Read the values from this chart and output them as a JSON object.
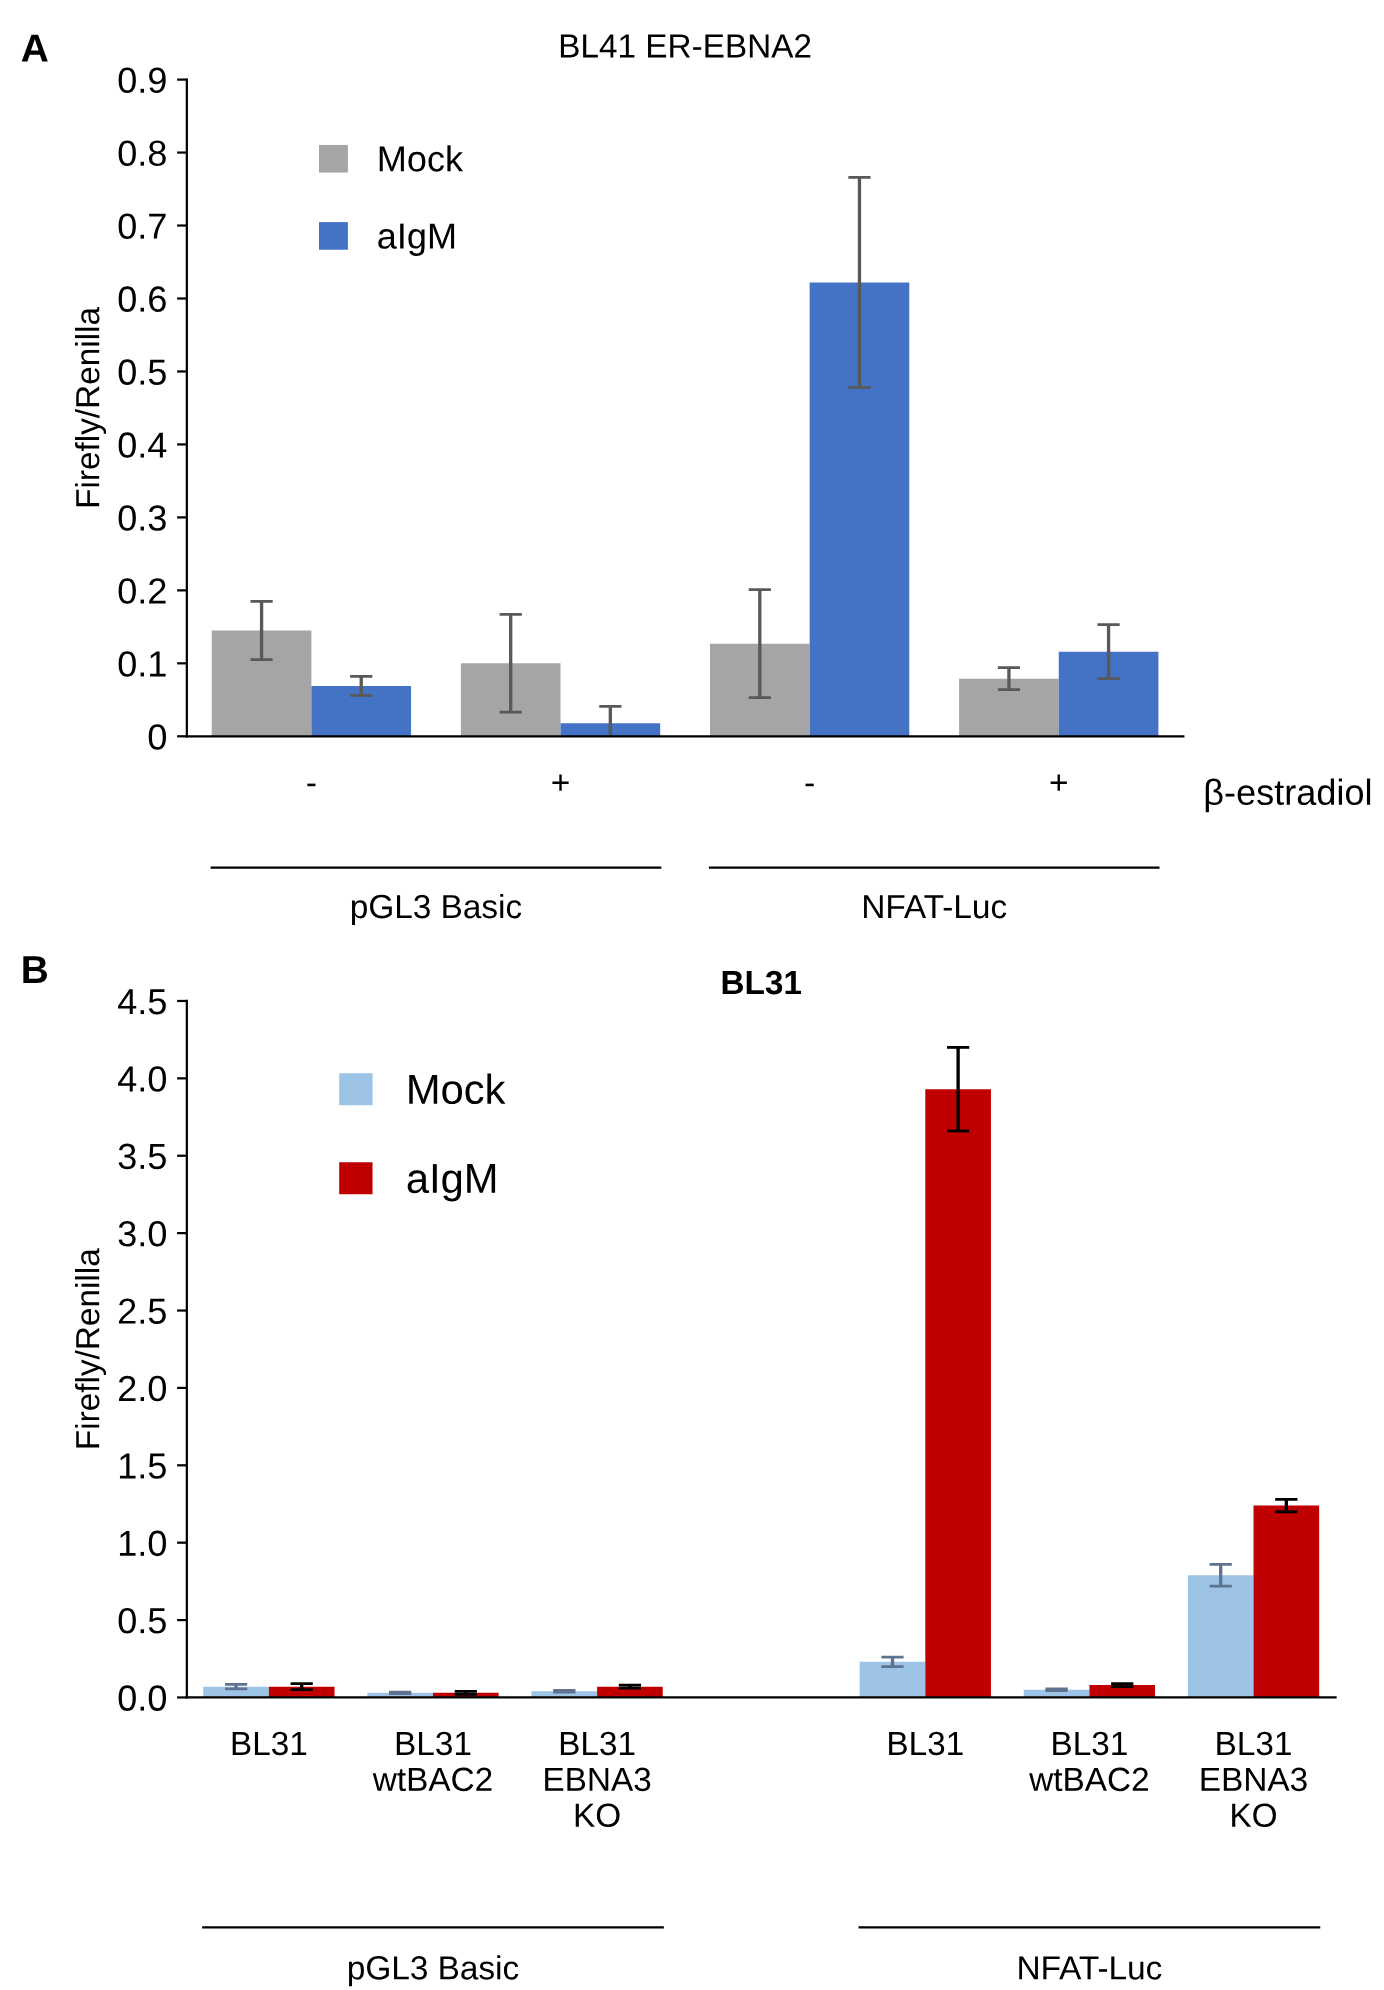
{
  "chart_data": [
    {
      "type": "bar",
      "title": "BL41 ER-EBNA2",
      "ylabel": "Firefly/Renilla",
      "categories": [
        "-",
        "+",
        "-",
        "+"
      ],
      "series": [
        {
          "name": "Mock",
          "color": "#a5a5a5",
          "values": [
            0.145,
            0.1,
            0.127,
            0.079
          ],
          "errors": [
            0.04,
            0.067,
            0.074,
            0.015
          ]
        },
        {
          "name": "aIgM",
          "color": "#4472c4",
          "values": [
            0.069,
            0.018,
            0.622,
            0.116
          ],
          "errors": [
            0.013,
            0.023,
            0.144,
            0.037
          ]
        }
      ],
      "ylim": [
        0,
        0.9
      ],
      "yticks": [
        0,
        0.1,
        0.2,
        0.3,
        0.4,
        0.5,
        0.6,
        0.7,
        0.8,
        0.9
      ],
      "grid": false,
      "legend": "top left",
      "annotations": [
        "A",
        "pGL3 Basic",
        "NFAT-Luc",
        "β-estradiol"
      ]
    },
    {
      "type": "bar",
      "title": "BL31",
      "ylabel": "Firefly/Renilla",
      "categories": [
        "BL31",
        "BL31\nwtBAC2",
        "BL31\nEBNA3\nKO",
        null,
        "BL31",
        "BL31\nwtBAC2",
        "BL31\nEBNA3\nKO"
      ],
      "series": [
        {
          "name": "Mock",
          "color": "#9dc3e6",
          "values": [
            0.07,
            0.03,
            0.04,
            null,
            0.23,
            0.05,
            0.79
          ],
          "errors": [
            0.015,
            0.005,
            0.005,
            null,
            0.03,
            0.005,
            0.07
          ]
        },
        {
          "name": "aIgM",
          "color": "#c00000",
          "values": [
            0.07,
            0.03,
            0.07,
            null,
            3.93,
            0.08,
            1.24
          ],
          "errors": [
            0.02,
            0.01,
            0.01,
            null,
            0.27,
            0.01,
            0.04
          ]
        }
      ],
      "ylim": [
        0,
        4.5
      ],
      "yticks": [
        {
          "value": 0,
          "label": "0.0"
        },
        0.5,
        {
          "value": 1,
          "label": "1.0"
        },
        1.5,
        {
          "value": 2,
          "label": "2.0"
        },
        2.5,
        {
          "value": 3,
          "label": "3.0"
        },
        3.5,
        {
          "value": 4,
          "label": "4.0"
        },
        4.5
      ],
      "grid": false,
      "legend": "top left",
      "annotations": [
        "B",
        "pGL3 Basic",
        "NFAT-Luc"
      ]
    }
  ]
}
